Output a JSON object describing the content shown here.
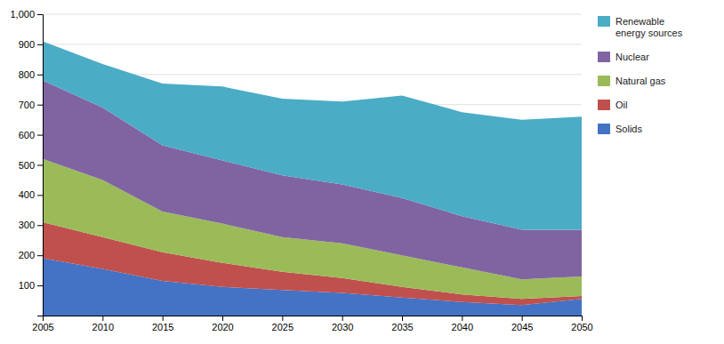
{
  "chart_data": {
    "type": "area",
    "stacked": true,
    "grid": true,
    "legend": "right",
    "x": [
      2005,
      2010,
      2015,
      2020,
      2025,
      2030,
      2035,
      2040,
      2045,
      2050
    ],
    "xlim": [
      2005,
      2050
    ],
    "xticks": [
      2005,
      2010,
      2015,
      2020,
      2025,
      2030,
      2035,
      2040,
      2045,
      2050
    ],
    "ylim": [
      0,
      1000
    ],
    "yticks": [
      100,
      200,
      300,
      400,
      500,
      600,
      700,
      800,
      900,
      {
        "value": 1000,
        "label": "1,000"
      }
    ],
    "series": [
      {
        "name": "Solids",
        "color": "#4472c4",
        "values": [
          190,
          155,
          115,
          95,
          85,
          75,
          60,
          45,
          35,
          55
        ]
      },
      {
        "name": "Oil",
        "color": "#c0504d",
        "values": [
          120,
          105,
          95,
          80,
          60,
          50,
          35,
          25,
          20,
          10
        ]
      },
      {
        "name": "Natural gas",
        "color": "#9bbb59",
        "values": [
          210,
          190,
          135,
          130,
          115,
          115,
          105,
          90,
          65,
          65
        ]
      },
      {
        "name": "Nuclear",
        "color": "#8064a2",
        "values": [
          260,
          240,
          220,
          210,
          205,
          195,
          190,
          170,
          165,
          155
        ]
      },
      {
        "name": "Renewable\nenergy sources",
        "color": "#4bacc6",
        "values": [
          130,
          145,
          205,
          245,
          255,
          275,
          340,
          345,
          365,
          375
        ]
      }
    ]
  }
}
